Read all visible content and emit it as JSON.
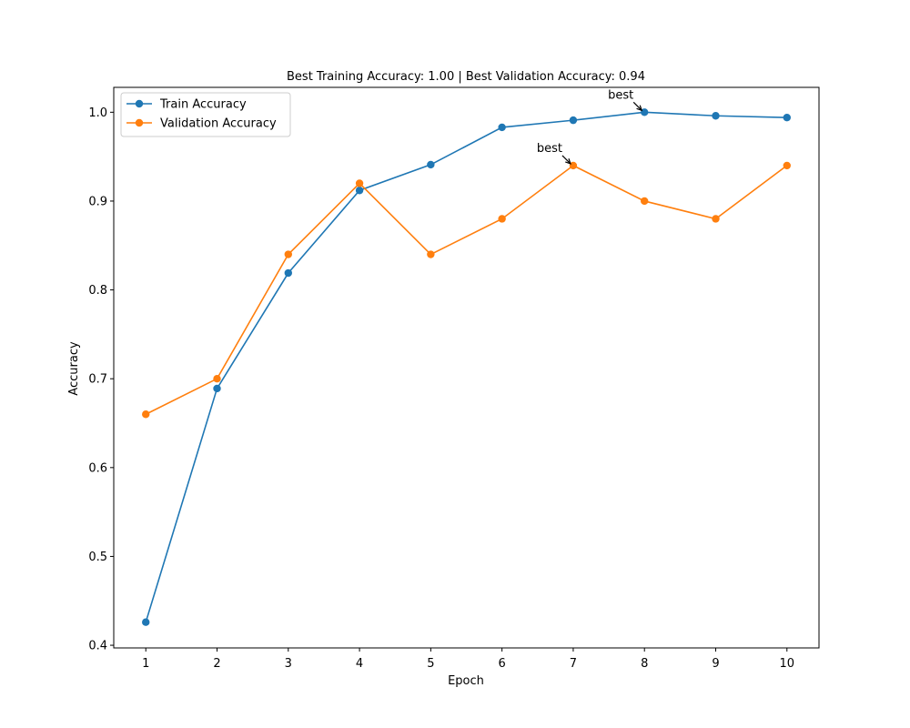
{
  "chart_data": {
    "type": "line",
    "title": "Best Training Accuracy: 1.00 | Best Validation Accuracy: 0.94",
    "xlabel": "Epoch",
    "ylabel": "Accuracy",
    "x": [
      1,
      2,
      3,
      4,
      5,
      6,
      7,
      8,
      9,
      10
    ],
    "xlim": [
      0.55,
      10.45
    ],
    "ylim": [
      0.397,
      1.028
    ],
    "xticks": [
      1,
      2,
      3,
      4,
      5,
      6,
      7,
      8,
      9,
      10
    ],
    "yticks": [
      0.4,
      0.5,
      0.6,
      0.7,
      0.8,
      0.9,
      1.0
    ],
    "ytick_labels": [
      "0.4",
      "0.5",
      "0.6",
      "0.7",
      "0.8",
      "0.9",
      "1.0"
    ],
    "grid": false,
    "legend_position": "upper-left",
    "series": [
      {
        "name": "Train Accuracy",
        "color": "#1f77b4",
        "values": [
          0.426,
          0.689,
          0.819,
          0.912,
          0.941,
          0.983,
          0.991,
          1.0,
          0.996,
          0.994
        ]
      },
      {
        "name": "Validation Accuracy",
        "color": "#ff7f0e",
        "values": [
          0.66,
          0.7,
          0.84,
          0.92,
          0.84,
          0.88,
          0.94,
          0.9,
          0.88,
          0.94
        ]
      }
    ],
    "annotations": [
      {
        "text": "best",
        "series": 0,
        "x": 8,
        "y": 1.0
      },
      {
        "text": "best",
        "series": 1,
        "x": 7,
        "y": 0.94
      }
    ]
  }
}
